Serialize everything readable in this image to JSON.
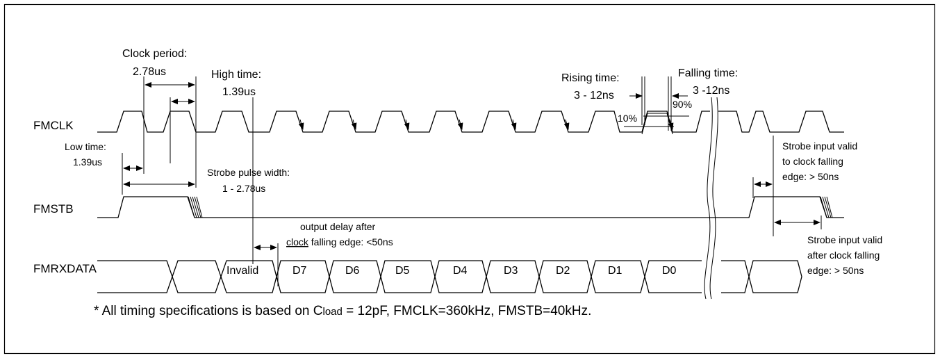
{
  "signals": {
    "fmclk": "FMCLK",
    "fmstb": "FMSTB",
    "fmrxdata": "FMRXDATA"
  },
  "annotations": {
    "clock_period_label": "Clock period:",
    "clock_period_value": "2.78us",
    "high_time_label": "High time:",
    "high_time_value": "1.39us",
    "low_time_label": "Low time:",
    "low_time_value": "1.39us",
    "rising_time_label": "Rising time:",
    "rising_time_value": "3 - 12ns",
    "falling_time_label": "Falling time:",
    "falling_time_value": "3 -12ns",
    "pct_10": "10%",
    "pct_90": "90%",
    "strobe_pulse_label": "Strobe pulse width:",
    "strobe_pulse_value": "1 - 2.78us",
    "output_delay_1": "output delay after",
    "output_delay_2_underlined": "clock",
    "output_delay_2_rest": " falling edge: <50ns",
    "strobe_valid_to_1": "Strobe input valid",
    "strobe_valid_to_2": "to clock falling",
    "strobe_valid_to_3": "edge: > 50ns",
    "strobe_valid_after_1": "Strobe input valid",
    "strobe_valid_after_2": "after clock falling",
    "strobe_valid_after_3": "edge: > 50ns"
  },
  "data_cells": [
    "Invalid",
    "D7",
    "D6",
    "D5",
    "D4",
    "D3",
    "D2",
    "D1",
    "D0"
  ],
  "footnote": {
    "part1": "* All timing specifications is based on C",
    "sub": "load",
    "part2": " = 12pF, FMCLK=360kHz,  FMSTB=40kHz."
  }
}
